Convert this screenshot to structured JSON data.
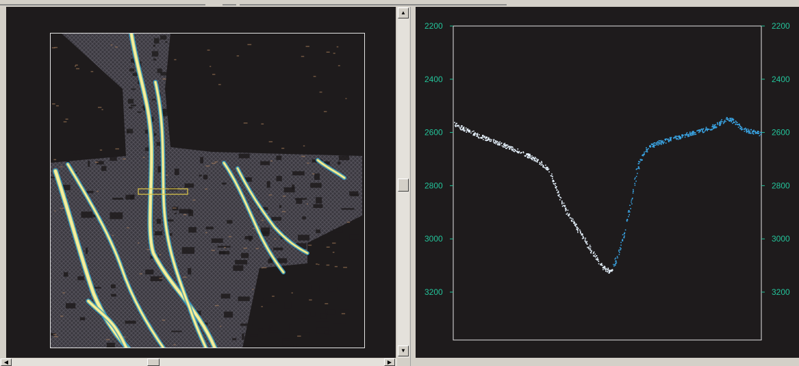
{
  "window": {
    "title": ""
  },
  "left_panel": {
    "name": "seismic-attribute-map",
    "colors": {
      "background": "#1e1b1c",
      "frame": "#e6e6e6",
      "mesh": "#54515a",
      "channel_core": "#f4eea2",
      "channel_edge": "#2ea0d8",
      "accent": "#b88960",
      "selection": "#d8c24a"
    }
  },
  "right_panel": {
    "name": "depth-profile-plot",
    "colors": {
      "background": "#1e1b1c",
      "frame": "#e6e6e6",
      "tick_label": "#23c49a",
      "points_white": "#e8f4ff",
      "points_blue": "#3aa6e6"
    }
  },
  "chart_data": {
    "type": "scatter",
    "title": "",
    "xlabel": "",
    "ylabel": "",
    "y_axis_inverted": true,
    "ylim": [
      2200,
      3380
    ],
    "xlim": [
      0,
      100
    ],
    "y_ticks": [
      "2200",
      "2400",
      "2600",
      "2800",
      "3000",
      "3200"
    ],
    "y_tick_values": [
      2200,
      2400,
      2600,
      2800,
      3000,
      3200
    ],
    "grid": false,
    "legend": "none",
    "series": [
      {
        "color": "#e8f4ff",
        "x": [
          0,
          5,
          10,
          15,
          20,
          25,
          28,
          31,
          33,
          35,
          37,
          39,
          41,
          43,
          45,
          47,
          49,
          50.5,
          52
        ],
        "y": [
          2565,
          2595,
          2620,
          2640,
          2665,
          2690,
          2710,
          2740,
          2800,
          2860,
          2900,
          2940,
          2975,
          3010,
          3050,
          3080,
          3110,
          3120,
          3115
        ]
      },
      {
        "color": "#3aa6e6",
        "x": [
          52,
          54,
          56,
          58,
          60,
          62,
          64,
          66,
          70,
          75,
          80,
          85,
          88,
          90,
          92,
          95,
          100
        ],
        "y": [
          3100,
          3040,
          2950,
          2830,
          2720,
          2670,
          2650,
          2640,
          2625,
          2610,
          2595,
          2575,
          2550,
          2550,
          2570,
          2590,
          2605
        ]
      }
    ]
  }
}
